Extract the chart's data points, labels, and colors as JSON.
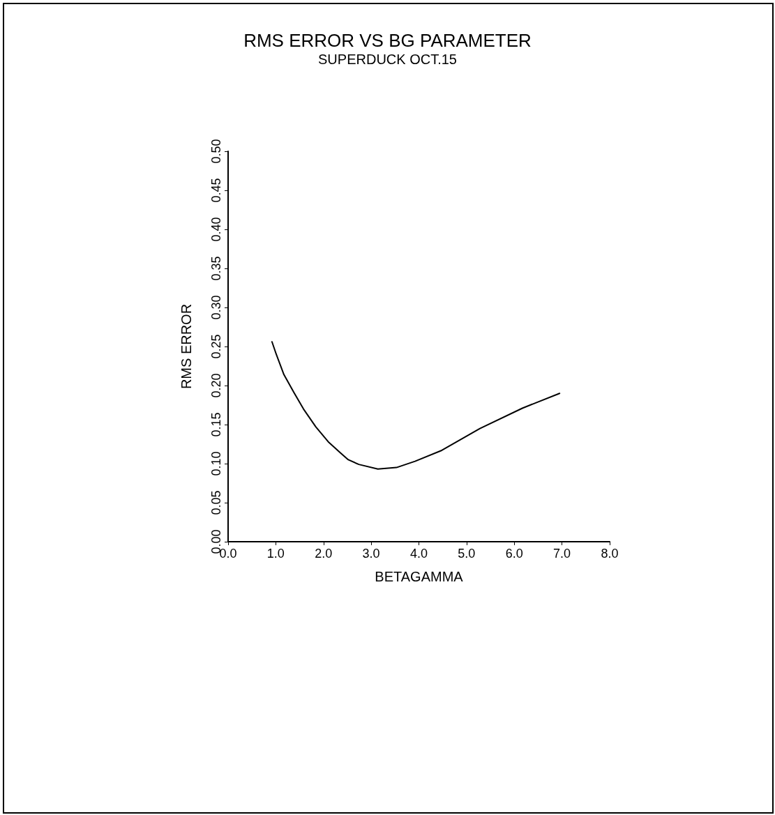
{
  "chart_data": {
    "type": "line",
    "title": "RMS ERROR VS BG PARAMETER",
    "subtitle": "SUPERDUCK OCT.15",
    "xlabel": "BETAGAMMA",
    "ylabel": "RMS ERROR",
    "x": [
      0.92,
      1.01,
      1.17,
      1.38,
      1.58,
      1.84,
      2.1,
      2.37,
      2.52,
      2.74,
      3.14,
      3.53,
      3.92,
      4.48,
      5.28,
      6.17,
      6.95
    ],
    "values": [
      0.256,
      0.24,
      0.214,
      0.191,
      0.17,
      0.147,
      0.128,
      0.113,
      0.105,
      0.099,
      0.093,
      0.095,
      0.103,
      0.117,
      0.145,
      0.171,
      0.19
    ],
    "color": "#000000",
    "marker": "none",
    "line_style": "solid",
    "grid": false,
    "xlim": [
      0,
      8
    ],
    "xticks": [
      {
        "value": 0,
        "label": "0.0"
      },
      {
        "value": 1,
        "label": "1.0"
      },
      {
        "value": 2,
        "label": "2.0"
      },
      {
        "value": 3,
        "label": "3.0"
      },
      {
        "value": 4,
        "label": "4.0"
      },
      {
        "value": 5,
        "label": "5.0"
      },
      {
        "value": 6,
        "label": "6.0"
      },
      {
        "value": 7,
        "label": "7.0"
      },
      {
        "value": 8,
        "label": "8.0"
      }
    ],
    "ylim": [
      0,
      0.5
    ],
    "yticks": [
      {
        "value": 0,
        "label": "0.00"
      },
      {
        "value": 0.05,
        "label": "0.05"
      },
      {
        "value": 0.1,
        "label": "0.10"
      },
      {
        "value": 0.15,
        "label": "0.15"
      },
      {
        "value": 0.2,
        "label": "0.20"
      },
      {
        "value": 0.25,
        "label": "0.25"
      },
      {
        "value": 0.3,
        "label": "0.30"
      },
      {
        "value": 0.35,
        "label": "0.35"
      },
      {
        "value": 0.4,
        "label": "0.40"
      },
      {
        "value": 0.45,
        "label": "0.45"
      },
      {
        "value": 0.5,
        "label": "0.50"
      }
    ]
  }
}
